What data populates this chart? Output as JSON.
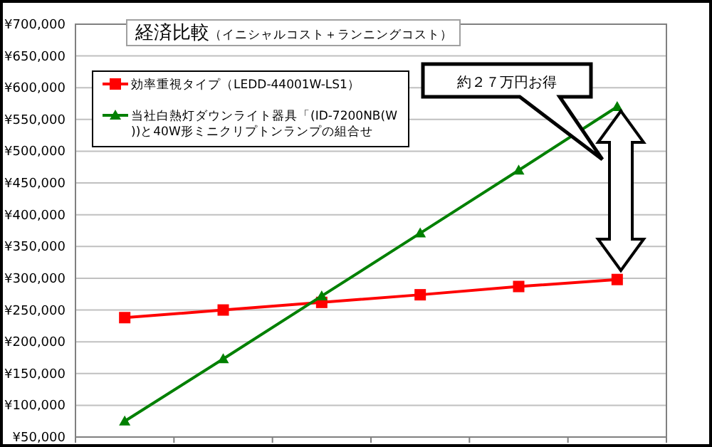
{
  "chart_data": {
    "type": "line",
    "title": "経済比較",
    "subtitle": "（イニシャルコスト＋ランニングコスト）",
    "categories": [
      null,
      null,
      null,
      null,
      null,
      null
    ],
    "series": [
      {
        "name": "効率重視タイプ（LEDD-44001W-LS1）",
        "color": "#ff0000",
        "marker": "square",
        "values": [
          238000,
          250000,
          262000,
          274000,
          287000,
          298000
        ]
      },
      {
        "name": "当社白熱灯ダウンライト器具「(ID-7200NB(W))と40W形ミニクリプトンランプの組合せ",
        "color": "#008000",
        "marker": "triangle",
        "values": [
          75000,
          173000,
          272000,
          371000,
          470000,
          570000
        ]
      }
    ],
    "ylim": [
      50000,
      700000
    ],
    "yticks": [
      {
        "value": 50000,
        "label": "¥50,000"
      },
      {
        "value": 100000,
        "label": "¥100,000"
      },
      {
        "value": 150000,
        "label": "¥150,000"
      },
      {
        "value": 200000,
        "label": "¥200,000"
      },
      {
        "value": 250000,
        "label": "¥250,000"
      },
      {
        "value": 300000,
        "label": "¥300,000"
      },
      {
        "value": 350000,
        "label": "¥350,000"
      },
      {
        "value": 400000,
        "label": "¥400,000"
      },
      {
        "value": 450000,
        "label": "¥450,000"
      },
      {
        "value": 500000,
        "label": "¥500,000"
      },
      {
        "value": 550000,
        "label": "¥550,000"
      },
      {
        "value": 600000,
        "label": "¥600,000"
      },
      {
        "value": 650000,
        "label": "¥650,000"
      },
      {
        "value": 700000,
        "label": "¥700,000"
      }
    ],
    "grid": "y",
    "legend": "top left",
    "line_style": "solid",
    "annotations": [
      "約２７万円お得"
    ]
  }
}
